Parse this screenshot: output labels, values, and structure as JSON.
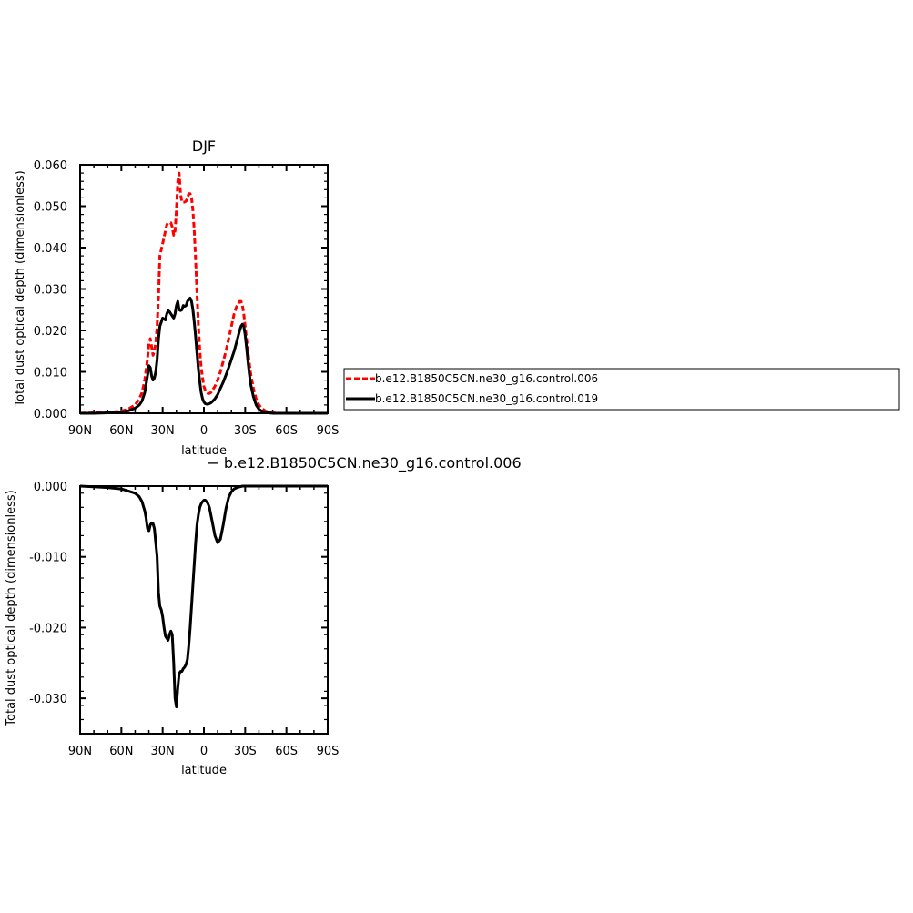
{
  "chart_data": [
    {
      "type": "line",
      "title": "DJF",
      "xlabel": "latitude",
      "ylabel": "Total dust optical depth (dimensionless)",
      "xlim": [
        90,
        -90
      ],
      "ylim": [
        0,
        0.06
      ],
      "x_ticks": [
        90,
        60,
        30,
        0,
        -30,
        -60,
        -90
      ],
      "x_tick_labels": [
        "90N",
        "60N",
        "30N",
        "0",
        "30S",
        "60S",
        "90S"
      ],
      "y_ticks": [
        0,
        0.01,
        0.02,
        0.03,
        0.04,
        0.05,
        0.06
      ],
      "y_tick_labels": [
        "0.000",
        "0.010",
        "0.020",
        "0.030",
        "0.040",
        "0.050",
        "0.060"
      ],
      "grid": false,
      "legend_position": "right",
      "series": [
        {
          "name": "b.e12.B1850C5CN.ne30_g16.control.006",
          "color": "#ff0000",
          "dash": "dashed",
          "x": [
            90,
            80,
            70,
            60,
            55,
            50,
            47,
            45,
            43,
            42,
            41,
            40,
            39,
            38,
            37,
            36,
            35,
            34,
            33,
            32,
            30,
            28,
            27,
            26,
            25,
            24,
            23,
            22,
            21,
            20,
            19,
            18,
            17,
            16,
            15,
            14,
            13,
            12,
            11,
            10,
            9,
            8,
            7,
            6,
            5,
            4,
            3,
            2,
            1,
            0,
            -1,
            -2,
            -3,
            -4,
            -5,
            -6,
            -8,
            -10,
            -12,
            -14,
            -16,
            -18,
            -20,
            -22,
            -24,
            -26,
            -27,
            -28,
            -29,
            -30,
            -31,
            -32,
            -33,
            -34,
            -36,
            -38,
            -40,
            -42,
            -45,
            -50,
            -55,
            -60,
            -70,
            -90
          ],
          "values": [
            0.0,
            0.0001,
            0.0002,
            0.0005,
            0.001,
            0.002,
            0.0035,
            0.005,
            0.008,
            0.0105,
            0.013,
            0.017,
            0.018,
            0.016,
            0.014,
            0.015,
            0.017,
            0.021,
            0.028,
            0.038,
            0.041,
            0.044,
            0.0455,
            0.046,
            0.046,
            0.046,
            0.045,
            0.043,
            0.044,
            0.049,
            0.056,
            0.058,
            0.053,
            0.051,
            0.051,
            0.051,
            0.0512,
            0.052,
            0.053,
            0.053,
            0.052,
            0.049,
            0.044,
            0.037,
            0.029,
            0.021,
            0.015,
            0.011,
            0.0085,
            0.0065,
            0.0055,
            0.005,
            0.0048,
            0.0048,
            0.005,
            0.0055,
            0.0065,
            0.008,
            0.01,
            0.0125,
            0.015,
            0.018,
            0.021,
            0.024,
            0.026,
            0.027,
            0.027,
            0.026,
            0.024,
            0.021,
            0.018,
            0.015,
            0.012,
            0.0095,
            0.006,
            0.0035,
            0.002,
            0.0012,
            0.0005,
            0.0001,
            0.0,
            0.0,
            0.0,
            0.0
          ]
        },
        {
          "name": "b.e12.B1850C5CN.ne30_g16.control.019",
          "color": "#000000",
          "dash": "solid",
          "x": [
            90,
            80,
            70,
            60,
            55,
            50,
            47,
            45,
            43,
            42,
            41,
            40,
            39,
            38,
            37,
            36,
            35,
            34,
            33,
            32,
            30,
            28,
            27,
            26,
            25,
            24,
            23,
            22,
            21,
            20,
            19,
            18,
            17,
            16,
            15,
            14,
            13,
            12,
            11,
            10,
            9,
            8,
            7,
            6,
            5,
            4,
            3,
            2,
            1,
            0,
            -1,
            -2,
            -3,
            -4,
            -5,
            -6,
            -8,
            -10,
            -12,
            -14,
            -16,
            -18,
            -20,
            -22,
            -24,
            -26,
            -27,
            -28,
            -29,
            -30,
            -31,
            -32,
            -33,
            -34,
            -36,
            -38,
            -40,
            -42,
            -45,
            -50,
            -55,
            -60,
            -70,
            -90
          ],
          "values": [
            0.0,
            0.0,
            0.0001,
            0.0003,
            0.0006,
            0.0012,
            0.002,
            0.003,
            0.005,
            0.007,
            0.009,
            0.0115,
            0.011,
            0.009,
            0.008,
            0.0085,
            0.01,
            0.013,
            0.018,
            0.021,
            0.023,
            0.0225,
            0.024,
            0.0248,
            0.0245,
            0.024,
            0.0235,
            0.023,
            0.024,
            0.026,
            0.027,
            0.025,
            0.0248,
            0.025,
            0.026,
            0.0258,
            0.026,
            0.027,
            0.0275,
            0.0278,
            0.027,
            0.025,
            0.022,
            0.0185,
            0.0145,
            0.0105,
            0.0075,
            0.005,
            0.0035,
            0.0027,
            0.0023,
            0.0022,
            0.0022,
            0.0023,
            0.0025,
            0.0028,
            0.0035,
            0.0045,
            0.006,
            0.0075,
            0.0092,
            0.011,
            0.013,
            0.015,
            0.0175,
            0.02,
            0.021,
            0.0215,
            0.021,
            0.019,
            0.016,
            0.0125,
            0.0095,
            0.007,
            0.004,
            0.002,
            0.001,
            0.0005,
            0.0002,
            0.0,
            0.0,
            0.0,
            0.0,
            0.0
          ]
        }
      ]
    },
    {
      "type": "line",
      "title": "− b.e12.B1850C5CN.ne30_g16.control.006",
      "xlabel": "latitude",
      "ylabel": "Total dust optical depth (dimensionless)",
      "xlim": [
        90,
        -90
      ],
      "ylim": [
        -0.035,
        0
      ],
      "x_ticks": [
        90,
        60,
        30,
        0,
        -30,
        -60,
        -90
      ],
      "x_tick_labels": [
        "90N",
        "60N",
        "30N",
        "0",
        "30S",
        "60S",
        "90S"
      ],
      "y_ticks": [
        0,
        -0.01,
        -0.02,
        -0.03
      ],
      "y_tick_labels": [
        "0.000",
        "-0.010",
        "-0.020",
        "-0.030"
      ],
      "grid": false,
      "series": [
        {
          "color": "#000000",
          "dash": "solid",
          "x": [
            90,
            80,
            70,
            60,
            55,
            50,
            47,
            45,
            43,
            42,
            41,
            40,
            39,
            38,
            37,
            36,
            35,
            34,
            33,
            32,
            31,
            30,
            29,
            28,
            27,
            26,
            25,
            24,
            23,
            22,
            21,
            20,
            19,
            18,
            17,
            16,
            15,
            14,
            13,
            12,
            11,
            10,
            9,
            8,
            7,
            6,
            5,
            4,
            3,
            2,
            1,
            0,
            -1,
            -2,
            -3,
            -4,
            -6,
            -8,
            -10,
            -12,
            -14,
            -16,
            -18,
            -20,
            -22,
            -24,
            -26,
            -28,
            -30,
            -32,
            -34,
            -36,
            -38,
            -40,
            -42,
            -45,
            -50,
            -55,
            -60,
            -70,
            -80,
            -90
          ],
          "values": [
            0.0,
            -0.0001,
            -0.0002,
            -0.0004,
            -0.0007,
            -0.001,
            -0.0015,
            -0.0022,
            -0.0035,
            -0.0045,
            -0.006,
            -0.0063,
            -0.0055,
            -0.0052,
            -0.0053,
            -0.006,
            -0.008,
            -0.01,
            -0.015,
            -0.017,
            -0.0175,
            -0.0185,
            -0.02,
            -0.0212,
            -0.0215,
            -0.0218,
            -0.021,
            -0.0205,
            -0.021,
            -0.025,
            -0.03,
            -0.0312,
            -0.0285,
            -0.0265,
            -0.0262,
            -0.0262,
            -0.0258,
            -0.0256,
            -0.0252,
            -0.0245,
            -0.0225,
            -0.02,
            -0.017,
            -0.014,
            -0.011,
            -0.008,
            -0.0055,
            -0.004,
            -0.003,
            -0.0025,
            -0.0022,
            -0.002,
            -0.002,
            -0.0022,
            -0.0025,
            -0.003,
            -0.005,
            -0.007,
            -0.008,
            -0.0075,
            -0.0055,
            -0.0032,
            -0.0016,
            -0.0008,
            -0.0004,
            -0.0002,
            -0.0001,
            0.0,
            0.0,
            0.0,
            0.0,
            0.0,
            0.0,
            0.0,
            0.0,
            0.0,
            0.0,
            0.0,
            0.0,
            0.0,
            0.0,
            0.0
          ]
        }
      ]
    }
  ]
}
